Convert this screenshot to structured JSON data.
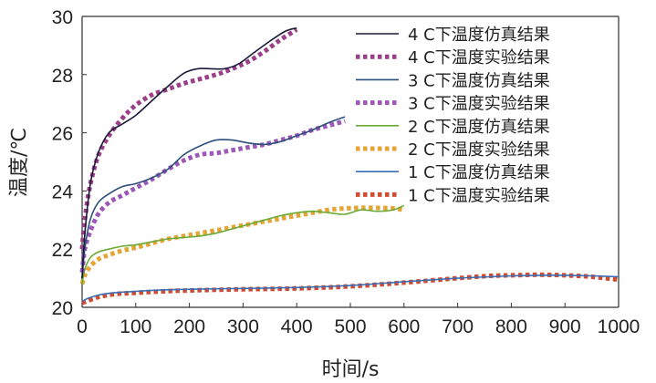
{
  "chart_data": {
    "type": "line",
    "title": "",
    "xlabel": "时间/s",
    "ylabel": "温度/℃",
    "xlim": [
      0,
      1000
    ],
    "ylim": [
      20,
      30
    ],
    "xticks": [
      0,
      100,
      200,
      300,
      400,
      500,
      600,
      700,
      800,
      900,
      1000
    ],
    "yticks": [
      20,
      22,
      24,
      26,
      28,
      30
    ],
    "grid": false,
    "legend_position": "top-right",
    "series": [
      {
        "name": "4 C下温度仿真结果",
        "style": "solid",
        "color": "#1a1a3a",
        "x": [
          0,
          5,
          15,
          30,
          50,
          75,
          100,
          130,
          160,
          190,
          215,
          240,
          265,
          290,
          320,
          350,
          380,
          400
        ],
        "y": [
          21.0,
          22.5,
          24.2,
          25.3,
          26.0,
          26.3,
          26.6,
          27.1,
          27.6,
          28.05,
          28.2,
          28.2,
          28.2,
          28.35,
          28.75,
          29.15,
          29.5,
          29.6
        ]
      },
      {
        "name": "4 C下温度实验结果",
        "style": "dotted",
        "color": "#9c3f88",
        "x": [
          0,
          5,
          15,
          30,
          50,
          75,
          100,
          130,
          160,
          190,
          220,
          250,
          280,
          310,
          340,
          370,
          400
        ],
        "y": [
          22.0,
          23.0,
          24.2,
          25.2,
          25.9,
          26.5,
          26.95,
          27.3,
          27.5,
          27.7,
          27.85,
          28.0,
          28.2,
          28.45,
          28.8,
          29.2,
          29.55
        ]
      },
      {
        "name": "3 C下温度仿真结果",
        "style": "solid",
        "color": "#2e4f7c",
        "x": [
          0,
          5,
          15,
          30,
          50,
          75,
          100,
          130,
          160,
          190,
          220,
          250,
          280,
          310,
          340,
          370,
          400,
          430,
          460,
          490
        ],
        "y": [
          21.0,
          22.0,
          23.0,
          23.6,
          23.9,
          24.15,
          24.25,
          24.45,
          24.75,
          25.25,
          25.55,
          25.75,
          25.75,
          25.65,
          25.6,
          25.7,
          25.9,
          26.1,
          26.35,
          26.55
        ]
      },
      {
        "name": "3 C下温度实验结果",
        "style": "dotted",
        "color": "#9b58b7",
        "x": [
          0,
          5,
          15,
          30,
          50,
          75,
          100,
          130,
          160,
          190,
          220,
          250,
          280,
          310,
          340,
          370,
          400,
          430,
          460,
          490
        ],
        "y": [
          21.2,
          22.0,
          22.6,
          23.2,
          23.6,
          23.85,
          24.1,
          24.4,
          24.75,
          25.05,
          25.25,
          25.3,
          25.4,
          25.5,
          25.6,
          25.75,
          25.9,
          26.1,
          26.25,
          26.4
        ]
      },
      {
        "name": "2 C下温度仿真结果",
        "style": "solid",
        "color": "#6aaa34",
        "x": [
          0,
          5,
          15,
          30,
          50,
          75,
          100,
          130,
          160,
          190,
          220,
          250,
          280,
          310,
          340,
          370,
          400,
          430,
          460,
          490,
          520,
          550,
          580,
          600
        ],
        "y": [
          20.8,
          21.3,
          21.7,
          21.9,
          22.0,
          22.1,
          22.15,
          22.25,
          22.35,
          22.4,
          22.45,
          22.55,
          22.7,
          22.85,
          23.0,
          23.15,
          23.25,
          23.3,
          23.25,
          23.2,
          23.35,
          23.3,
          23.35,
          23.5
        ]
      },
      {
        "name": "2 C下温度实验结果",
        "style": "dotted",
        "color": "#e5a436",
        "x": [
          0,
          5,
          15,
          30,
          50,
          75,
          100,
          130,
          160,
          190,
          220,
          250,
          280,
          310,
          340,
          370,
          400,
          430,
          460,
          490,
          520,
          550,
          580,
          600
        ],
        "y": [
          20.8,
          21.1,
          21.4,
          21.65,
          21.8,
          21.95,
          22.05,
          22.2,
          22.35,
          22.45,
          22.55,
          22.65,
          22.75,
          22.85,
          22.95,
          23.05,
          23.15,
          23.25,
          23.35,
          23.4,
          23.42,
          23.42,
          23.4,
          23.35
        ]
      },
      {
        "name": "1 C下温度仿真结果",
        "style": "solid",
        "color": "#3a6fb5",
        "x": [
          0,
          10,
          30,
          60,
          100,
          150,
          200,
          300,
          400,
          500,
          600,
          700,
          760,
          800,
          850,
          900,
          950,
          1000
        ],
        "y": [
          20.2,
          20.3,
          20.42,
          20.5,
          20.55,
          20.6,
          20.62,
          20.65,
          20.68,
          20.75,
          20.88,
          21.0,
          21.05,
          21.08,
          21.1,
          21.1,
          21.08,
          21.05
        ]
      },
      {
        "name": "1 C下温度实验结果",
        "style": "dotted",
        "color": "#d24a2f",
        "x": [
          0,
          10,
          30,
          60,
          100,
          150,
          200,
          300,
          400,
          500,
          600,
          700,
          760,
          800,
          850,
          900,
          950,
          1000
        ],
        "y": [
          20.15,
          20.22,
          20.35,
          20.45,
          20.5,
          20.55,
          20.58,
          20.62,
          20.65,
          20.72,
          20.85,
          21.0,
          21.08,
          21.1,
          21.12,
          21.1,
          21.05,
          20.95
        ]
      }
    ]
  }
}
